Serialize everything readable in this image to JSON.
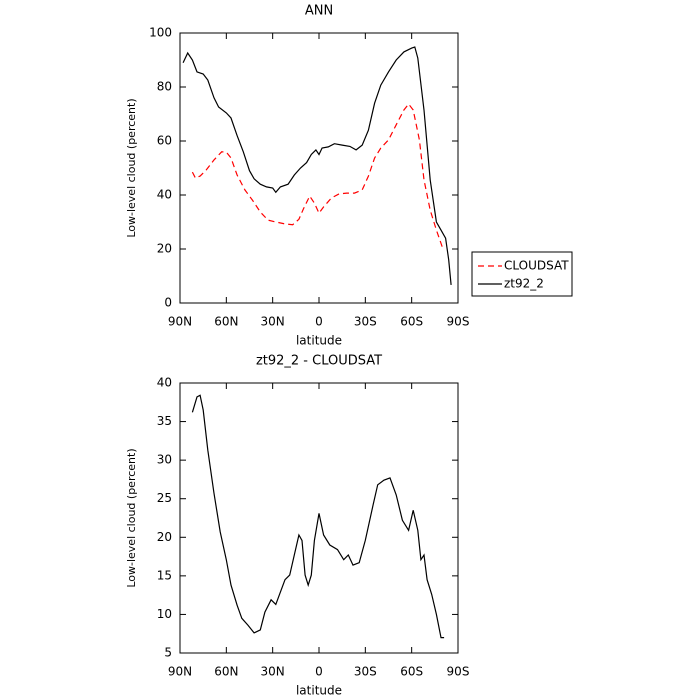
{
  "chart_data": [
    {
      "type": "line",
      "title": "ANN",
      "xlabel": "latitude",
      "ylabel": "Low-level cloud (percent)",
      "xlim": [
        90,
        -90
      ],
      "ylim": [
        0,
        100
      ],
      "xticks": [
        {
          "value": 90,
          "label": "90N"
        },
        {
          "value": 60,
          "label": "60N"
        },
        {
          "value": 30,
          "label": "30N"
        },
        0,
        {
          "value": -30,
          "label": "30S"
        },
        {
          "value": -60,
          "label": "60S"
        },
        {
          "value": -90,
          "label": "90S"
        }
      ],
      "yticks": [
        0,
        20,
        40,
        60,
        80,
        100
      ],
      "legend": "outside-right",
      "series": [
        {
          "name": "CLOUDSAT",
          "color": "#ff0000",
          "linestyle": "dashed",
          "x": [
            82,
            80,
            77,
            73,
            68,
            63,
            60,
            57,
            53,
            48,
            43,
            38,
            33,
            28,
            22,
            17,
            13,
            10,
            6,
            3,
            0,
            -3,
            -8,
            -13,
            -18,
            -23,
            -28,
            -32,
            -36,
            -40,
            -45,
            -50,
            -55,
            -58,
            -61,
            -65,
            -68,
            -72,
            -76,
            -80
          ],
          "values": [
            48.5,
            46.3,
            47,
            49.3,
            53,
            56,
            55.9,
            53.7,
            47.4,
            41.9,
            38,
            33.7,
            30.7,
            30,
            29.3,
            29,
            31,
            35,
            39.6,
            37,
            33.3,
            35.6,
            38.9,
            40.4,
            40.7,
            40.7,
            41.9,
            47,
            53.7,
            57.4,
            60.4,
            66,
            71.5,
            73.7,
            71.5,
            60.4,
            45.6,
            34.4,
            27,
            20.4
          ]
        },
        {
          "name": "zt92_2",
          "color": "#000000",
          "linestyle": "solid",
          "x": [
            88,
            85,
            82,
            79,
            75,
            72,
            68,
            65,
            60,
            57,
            53,
            49,
            45,
            42,
            38,
            34,
            30,
            28,
            25,
            20,
            16,
            12,
            8,
            5,
            2,
            0,
            -2,
            -6,
            -10,
            -15,
            -20,
            -24,
            -28,
            -32,
            -36,
            -40,
            -45,
            -50,
            -55,
            -60,
            -62,
            -64,
            -68,
            -72,
            -76,
            -79,
            -82,
            -84,
            -85.5
          ],
          "values": [
            89,
            92.6,
            90,
            85.6,
            84.8,
            82.6,
            76,
            72.6,
            70.4,
            68.5,
            62,
            56,
            49,
            46,
            44,
            43,
            42.6,
            41,
            43,
            44,
            47.4,
            50,
            52,
            55,
            56.7,
            55,
            57.4,
            57.8,
            59,
            58.5,
            58,
            56.7,
            58.5,
            64,
            74,
            80.7,
            85.6,
            90,
            93,
            94.4,
            94.8,
            90.7,
            71.5,
            45.6,
            30,
            27,
            24,
            16,
            6.7
          ]
        }
      ]
    },
    {
      "type": "line",
      "title": "zt92_2 - CLOUDSAT",
      "xlabel": "latitude",
      "ylabel": "Low-level cloud (percent)",
      "xlim": [
        90,
        -90
      ],
      "ylim": [
        5,
        40
      ],
      "xticks": [
        {
          "value": 90,
          "label": "90N"
        },
        {
          "value": 60,
          "label": "60N"
        },
        {
          "value": 30,
          "label": "30N"
        },
        0,
        {
          "value": -30,
          "label": "30S"
        },
        {
          "value": -60,
          "label": "60S"
        },
        {
          "value": -90,
          "label": "90S"
        }
      ],
      "yticks": [
        5,
        10,
        15,
        20,
        25,
        30,
        35,
        40
      ],
      "series": [
        {
          "color": "#000000",
          "linestyle": "solid",
          "x": [
            82,
            79,
            77,
            75,
            72,
            68,
            64,
            60,
            57,
            53,
            50,
            46,
            42,
            38,
            35,
            31,
            28,
            25,
            22,
            19,
            16,
            13,
            11,
            9,
            7,
            5,
            3,
            0,
            -3,
            -7,
            -12,
            -16,
            -19,
            -22,
            -26,
            -30,
            -35,
            -38,
            -42,
            -46,
            -50,
            -54,
            -58,
            -61,
            -64,
            -66,
            -68,
            -70,
            -73,
            -76,
            -79,
            -81
          ],
          "values": [
            36.2,
            38.2,
            38.4,
            36.5,
            31.3,
            25.7,
            20.7,
            17.1,
            13.8,
            11.2,
            9.5,
            8.6,
            7.6,
            8,
            10.3,
            11.9,
            11.3,
            12.9,
            14.5,
            15.1,
            17.7,
            20.3,
            19.6,
            15.1,
            13.8,
            15.1,
            19.6,
            23.1,
            20.3,
            19,
            18.4,
            17.1,
            17.7,
            16.4,
            16.7,
            19.6,
            24.2,
            26.8,
            27.4,
            27.7,
            25.5,
            22.2,
            20.9,
            23.5,
            20.9,
            17.1,
            17.7,
            14.5,
            12.6,
            10,
            7,
            7
          ]
        }
      ]
    }
  ]
}
